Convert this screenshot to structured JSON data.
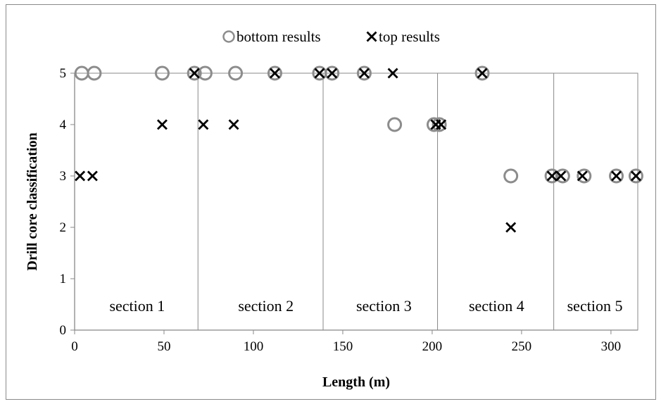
{
  "chart_data": {
    "type": "scatter",
    "title": "",
    "xlabel": "Length (m)",
    "ylabel": "Drill  core classification",
    "xlim": [
      0,
      315
    ],
    "ylim": [
      0,
      5
    ],
    "x_ticks": [
      0,
      50,
      100,
      150,
      200,
      250,
      300
    ],
    "y_ticks": [
      0,
      1,
      2,
      3,
      4,
      5
    ],
    "grid": false,
    "legend_placement": "top-center",
    "section_boundaries": [
      69,
      139,
      203,
      268
    ],
    "sections": [
      {
        "label": "section 1",
        "x_center": 35
      },
      {
        "label": "section 2",
        "x_center": 107
      },
      {
        "label": "section 3",
        "x_center": 173
      },
      {
        "label": "section 4",
        "x_center": 236
      },
      {
        "label": "section 5",
        "x_center": 291
      }
    ],
    "series": [
      {
        "name": "bottom results",
        "marker": "circle",
        "color": "#8c8c8c",
        "points": [
          [
            4,
            5
          ],
          [
            11,
            5
          ],
          [
            49,
            5
          ],
          [
            67,
            5
          ],
          [
            73,
            5
          ],
          [
            90,
            5
          ],
          [
            112,
            5
          ],
          [
            137,
            5
          ],
          [
            144,
            5
          ],
          [
            162,
            5
          ],
          [
            179,
            4
          ],
          [
            201,
            4
          ],
          [
            204,
            4
          ],
          [
            228,
            5
          ],
          [
            244,
            3
          ],
          [
            267,
            3
          ],
          [
            273,
            3
          ],
          [
            285,
            3
          ],
          [
            303,
            3
          ],
          [
            314,
            3
          ]
        ]
      },
      {
        "name": "top results",
        "marker": "x",
        "color": "#000000",
        "points": [
          [
            3,
            3
          ],
          [
            10,
            3
          ],
          [
            49,
            4
          ],
          [
            67,
            5
          ],
          [
            72,
            4
          ],
          [
            89,
            4
          ],
          [
            112,
            5
          ],
          [
            137,
            5
          ],
          [
            144,
            5
          ],
          [
            162,
            5
          ],
          [
            178,
            5
          ],
          [
            202,
            4
          ],
          [
            205,
            4
          ],
          [
            228,
            5
          ],
          [
            244,
            2
          ],
          [
            267,
            3
          ],
          [
            272,
            3
          ],
          [
            284,
            3
          ],
          [
            303,
            3
          ],
          [
            314,
            3
          ]
        ]
      }
    ]
  },
  "colors": {
    "axis": "#888888",
    "bottom_marker": "#8c8c8c",
    "top_marker": "#000000"
  }
}
